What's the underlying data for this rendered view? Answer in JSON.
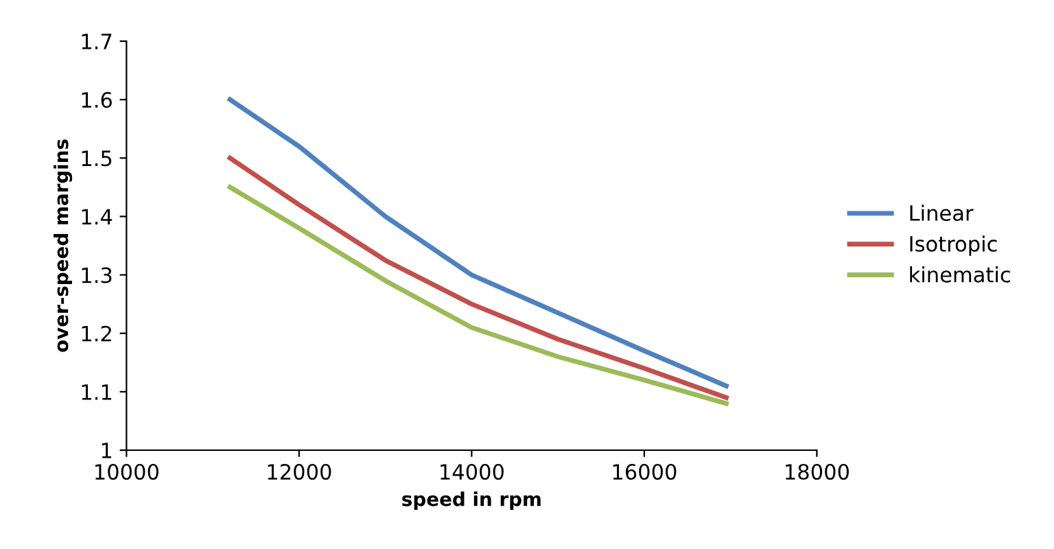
{
  "chart_data": {
    "type": "line",
    "xlabel": "speed in rpm",
    "ylabel": "over-speed margins",
    "xlim": [
      10000,
      18000
    ],
    "xticks": [
      10000,
      12000,
      14000,
      16000,
      18000
    ],
    "ylim": [
      1,
      1.7
    ],
    "yticks": [
      1,
      1.1,
      1.2,
      1.3,
      1.4,
      1.5,
      1.6,
      1.7
    ],
    "grid": false,
    "legend": "right",
    "marker": "none",
    "line_style": "solid",
    "x": [
      11200,
      12000,
      13000,
      14000,
      15000,
      16000,
      16950
    ],
    "series": [
      {
        "name": "Linear",
        "color": "#4f81bd",
        "values": [
          1.6,
          1.52,
          1.4,
          1.3,
          1.235,
          1.17,
          1.11
        ]
      },
      {
        "name": "Isotropic",
        "color": "#c0504d",
        "values": [
          1.5,
          1.42,
          1.325,
          1.25,
          1.19,
          1.14,
          1.09
        ]
      },
      {
        "name": "kinematic",
        "color": "#9bbb59",
        "values": [
          1.45,
          1.38,
          1.29,
          1.21,
          1.16,
          1.12,
          1.08
        ]
      }
    ]
  }
}
